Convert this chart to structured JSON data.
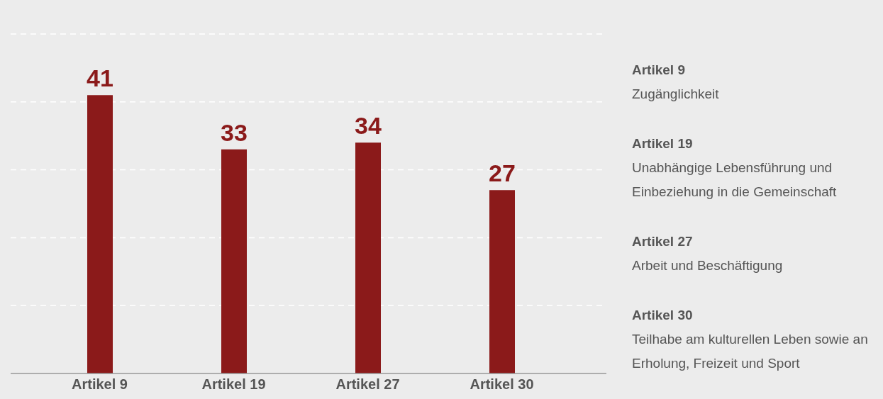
{
  "chart_data": {
    "type": "bar",
    "categories": [
      "Artikel 9",
      "Artikel 19",
      "Artikel 27",
      "Artikel 30"
    ],
    "values": [
      41,
      33,
      34,
      27
    ],
    "color": "#8b1a1a",
    "data_labels": true,
    "ylim": [
      0,
      50
    ],
    "yticks": [
      {
        "value": 10,
        "label": null
      },
      {
        "value": 20,
        "label": null
      },
      {
        "value": 30,
        "label": null
      },
      {
        "value": 40,
        "label": null
      },
      {
        "value": 50,
        "label": null
      }
    ],
    "grid": "y",
    "tick_labels": "x",
    "annotations": [
      "Artikel 9",
      "Zugänglichkeit",
      "Artikel 19",
      "Unabhängige Lebensführung und Einbeziehung in die Gemeinschaft",
      "Artikel 27",
      "Arbeit und Beschäftigung",
      "Artikel 30",
      "Teilhabe am kulturellen Leben sowie an Erholung, Freizeit und Sport"
    ]
  }
}
